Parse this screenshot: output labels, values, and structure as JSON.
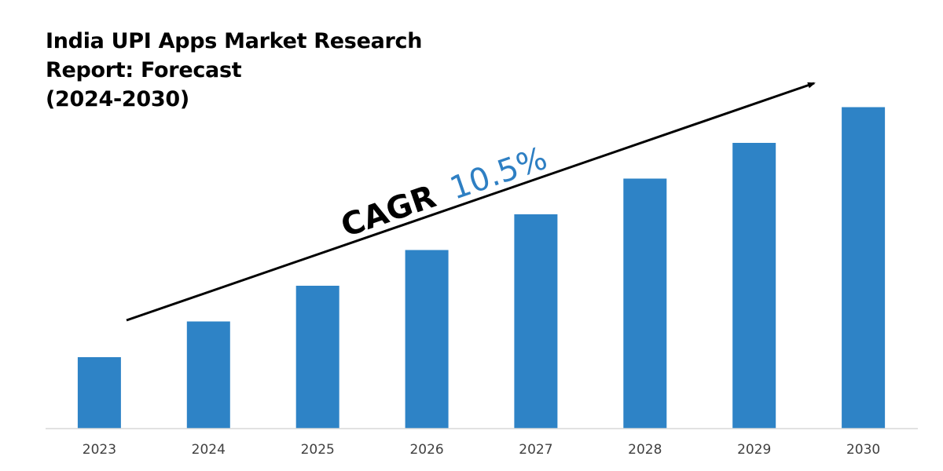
{
  "colors": {
    "bar": "#2e83c6",
    "cagr_value": "#2e7fc3",
    "arrow": "#000000",
    "axis": "#d9d9d9"
  },
  "chart_data": {
    "type": "bar",
    "title": "India UPI Apps Market Research Report: Forecast (2024-2030)",
    "title_lines": [
      "India UPI Apps Market Research",
      "Report: Forecast",
      "(2024-2030)"
    ],
    "categories": [
      "2023",
      "2024",
      "2025",
      "2026",
      "2027",
      "2028",
      "2029",
      "2030"
    ],
    "values": [
      1.0,
      1.5,
      2.0,
      2.5,
      3.0,
      3.5,
      4.0,
      4.5
    ],
    "ylim": [
      0,
      5
    ],
    "grid": false,
    "annotation": {
      "label": "CAGR",
      "value": "10.5%"
    }
  }
}
